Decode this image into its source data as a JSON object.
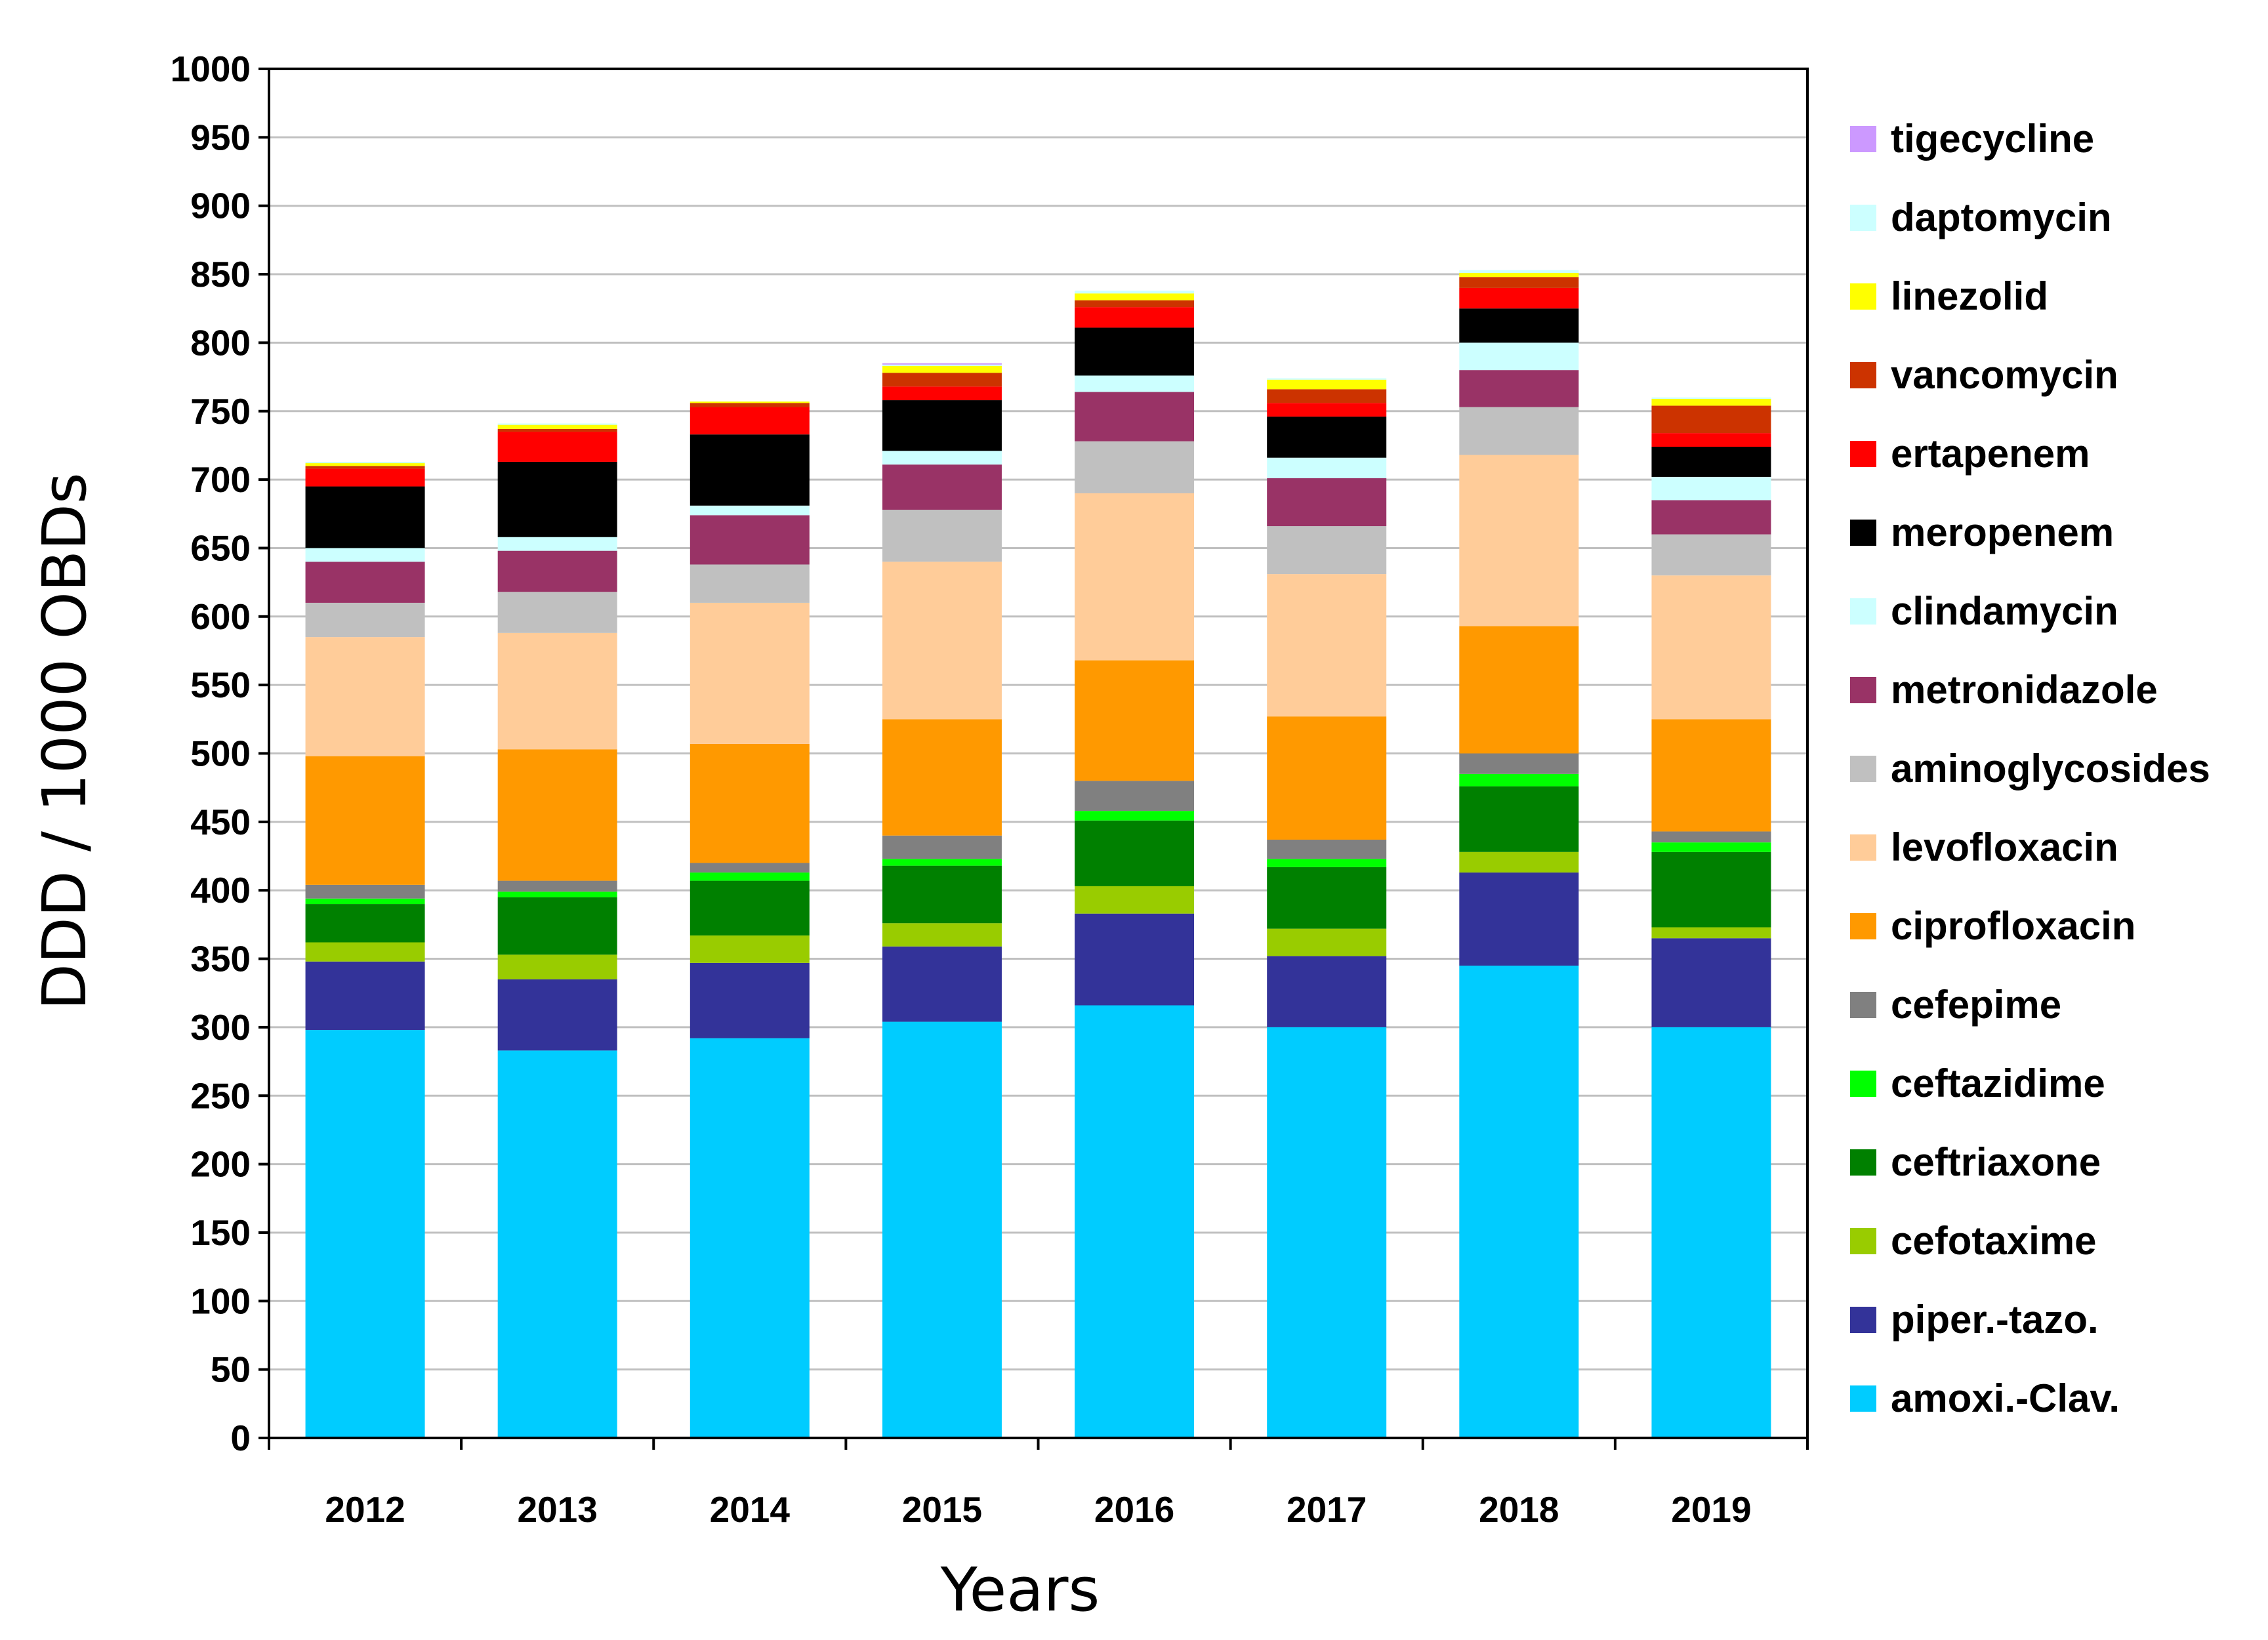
{
  "chart_data": {
    "type": "bar",
    "stacked": true,
    "title": "",
    "xlabel": "Years",
    "ylabel": "DDD / 1000 OBDs",
    "ylim": [
      0,
      1000
    ],
    "yticks": [
      0,
      50,
      100,
      150,
      200,
      250,
      300,
      350,
      400,
      450,
      500,
      550,
      600,
      650,
      700,
      750,
      800,
      850,
      900,
      950,
      1000
    ],
    "grid": true,
    "legend_position": "right",
    "categories": [
      "2012",
      "2013",
      "2014",
      "2015",
      "2016",
      "2017",
      "2018",
      "2019"
    ],
    "series": [
      {
        "name": "amoxi.-Clav.",
        "color": "#00CCFF",
        "values": [
          298,
          283,
          292,
          304,
          316,
          300,
          345,
          300
        ]
      },
      {
        "name": "piper.-tazo.",
        "color": "#333399",
        "values": [
          50,
          52,
          55,
          55,
          67,
          52,
          68,
          65
        ]
      },
      {
        "name": "cefotaxime",
        "color": "#99CC00",
        "values": [
          14,
          18,
          20,
          17,
          20,
          20,
          15,
          8
        ]
      },
      {
        "name": "ceftriaxone",
        "color": "#008000",
        "values": [
          28,
          42,
          40,
          42,
          48,
          45,
          48,
          55
        ]
      },
      {
        "name": "ceftazidime",
        "color": "#00FF00",
        "values": [
          4,
          4,
          6,
          5,
          7,
          6,
          9,
          7
        ]
      },
      {
        "name": "cefepime",
        "color": "#808080",
        "values": [
          10,
          8,
          7,
          17,
          22,
          14,
          15,
          8
        ]
      },
      {
        "name": "ciprofloxacin",
        "color": "#FF9900",
        "values": [
          94,
          96,
          87,
          85,
          88,
          90,
          93,
          82
        ]
      },
      {
        "name": "levofloxacin",
        "color": "#FFCC99",
        "values": [
          87,
          85,
          103,
          115,
          122,
          104,
          125,
          105
        ]
      },
      {
        "name": "aminoglycosides",
        "color": "#C0C0C0",
        "values": [
          25,
          30,
          28,
          38,
          38,
          35,
          35,
          30
        ]
      },
      {
        "name": "metronidazole",
        "color": "#993366",
        "values": [
          30,
          30,
          36,
          33,
          36,
          35,
          27,
          25
        ]
      },
      {
        "name": "clindamycin",
        "color": "#CCFFFF",
        "values": [
          10,
          10,
          7,
          10,
          12,
          15,
          20,
          17
        ]
      },
      {
        "name": "meropenem",
        "color": "#000000",
        "values": [
          45,
          55,
          52,
          37,
          35,
          30,
          25,
          22
        ]
      },
      {
        "name": "ertapenem",
        "color": "#FF0000",
        "values": [
          13,
          22,
          20,
          10,
          15,
          10,
          15,
          10
        ]
      },
      {
        "name": "vancomycin",
        "color": "#CC3300",
        "values": [
          2,
          2,
          3,
          10,
          5,
          10,
          8,
          20
        ]
      },
      {
        "name": "linezolid",
        "color": "#FFFF00",
        "values": [
          2,
          3,
          1,
          5,
          5,
          7,
          3,
          5
        ]
      },
      {
        "name": "daptomycin",
        "color": "#CCFFFF",
        "values": [
          1,
          1,
          0,
          1,
          2,
          1,
          2,
          1
        ]
      },
      {
        "name": "tigecycline",
        "color": "#CC99FF",
        "values": [
          0,
          0,
          0,
          1,
          0,
          0,
          0,
          0
        ]
      }
    ]
  }
}
